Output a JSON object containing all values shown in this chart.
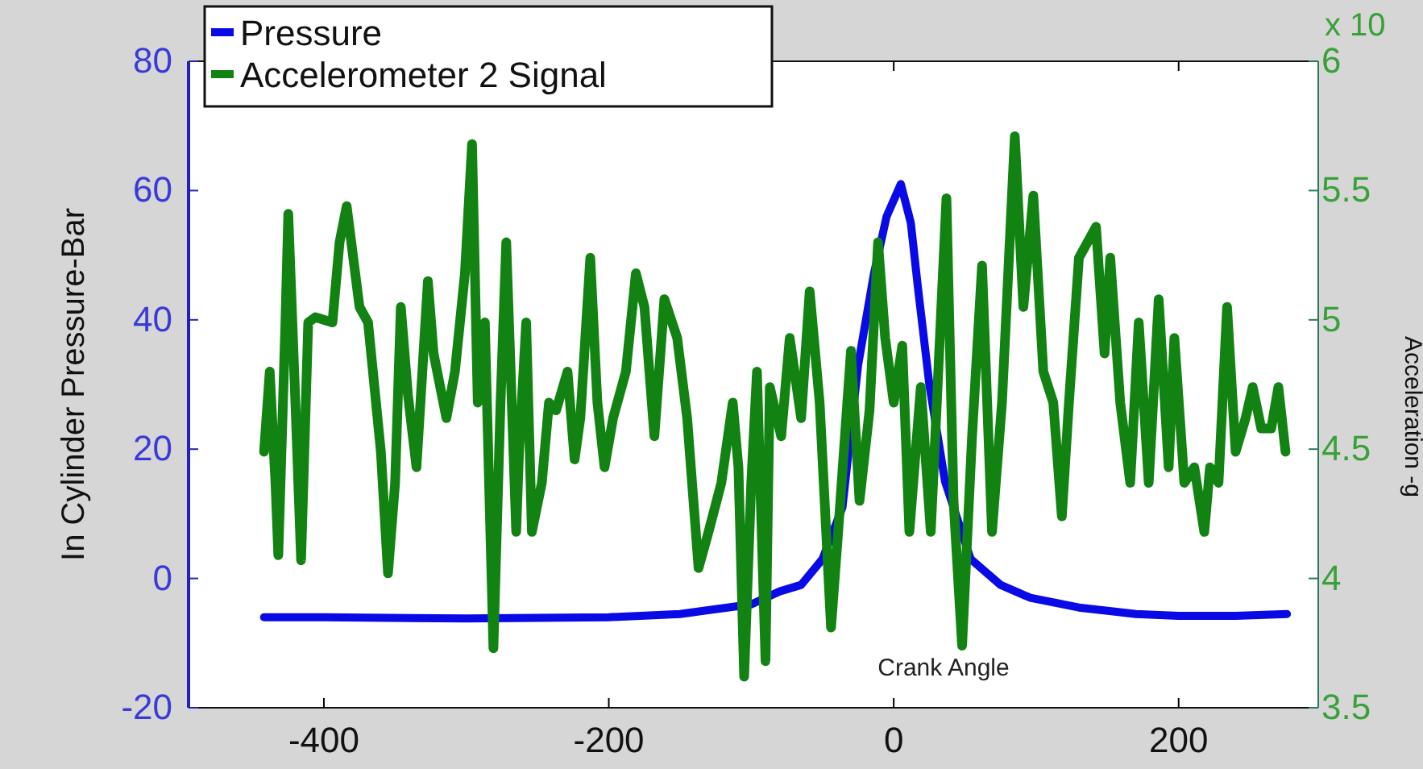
{
  "chart_data": {
    "type": "line",
    "xlabel": "Crank Angle",
    "ylabel": "In Cylinder Pressure-Bar",
    "y2label": "Acceleration -g",
    "annotations": [
      "x 10"
    ],
    "legend": "top left",
    "xlim": [
      -495,
      298
    ],
    "xticks": [
      -400,
      -200,
      0,
      200
    ],
    "ylim": [
      -20,
      80
    ],
    "yticks": [
      -20,
      0,
      20,
      40,
      60,
      80
    ],
    "y2lim": [
      3.5,
      6
    ],
    "y2ticks": [
      3.5,
      4,
      4.5,
      5,
      5.5,
      6
    ],
    "series": [
      {
        "name": "Pressure",
        "color": "#0a0ae6",
        "x": [
          -442,
          -400,
          -300,
          -200,
          -150,
          -100,
          -80,
          -65,
          -50,
          -36,
          -25,
          -14,
          -5,
          5,
          12,
          17,
          25,
          36,
          54,
          75,
          96,
          130,
          170,
          200,
          240,
          276
        ],
        "values": [
          -6,
          -6,
          -6.2,
          -6,
          -5.5,
          -4,
          -2,
          -1,
          3,
          11,
          33,
          47,
          56,
          61,
          55,
          45,
          30,
          15,
          3,
          -1,
          -3,
          -4.5,
          -5.5,
          -5.8,
          -5.8,
          -5.5
        ]
      },
      {
        "name": "Accelerometer 2 Signal",
        "color": "#128312",
        "axis": "y2",
        "x": [
          -442,
          -438,
          -434,
          -432,
          -427,
          -425,
          -420,
          -416,
          -411,
          -406,
          -394,
          -389,
          -384,
          -375,
          -369,
          -360,
          -355,
          -350,
          -346,
          -341,
          -335,
          -327,
          -323,
          -314,
          -308,
          -301,
          -296,
          -292,
          -287,
          -281,
          -276,
          -272,
          -265,
          -263,
          -258,
          -254,
          -247,
          -242,
          -237,
          -229,
          -224,
          -220,
          -213,
          -208,
          -203,
          -197,
          -188,
          -181,
          -175,
          -168,
          -161,
          -152,
          -145,
          -137,
          -130,
          -121,
          -113,
          -109,
          -105,
          -100,
          -96,
          -90,
          -87,
          -79,
          -73,
          -65,
          -59,
          -52,
          -44,
          -39,
          -30,
          -24,
          -17,
          -11,
          -6,
          0,
          6,
          11,
          19,
          26,
          37,
          42,
          48,
          55,
          62,
          69,
          76,
          85,
          91,
          98,
          105,
          112,
          118,
          123,
          130,
          136,
          142,
          148,
          152,
          159,
          166,
          172,
          179,
          186,
          193,
          197,
          204,
          211,
          218,
          222,
          228,
          234,
          240,
          247,
          252,
          258,
          265,
          270,
          275
        ],
        "values": [
          4.49,
          4.8,
          4.37,
          4.09,
          4.99,
          5.41,
          4.68,
          4.07,
          4.99,
          5.01,
          4.99,
          5.3,
          5.44,
          5.05,
          4.99,
          4.49,
          4.02,
          4.37,
          5.05,
          4.71,
          4.43,
          5.15,
          4.87,
          4.62,
          4.8,
          5.18,
          5.68,
          4.68,
          4.99,
          3.73,
          4.68,
          5.3,
          4.18,
          4.49,
          4.99,
          4.18,
          4.37,
          4.68,
          4.65,
          4.8,
          4.46,
          4.62,
          5.24,
          4.68,
          4.43,
          4.62,
          4.8,
          5.18,
          5.05,
          4.55,
          5.08,
          4.93,
          4.62,
          4.04,
          4.18,
          4.37,
          4.68,
          4.43,
          3.62,
          4.37,
          4.8,
          3.68,
          4.74,
          4.55,
          4.93,
          4.62,
          5.11,
          4.68,
          3.81,
          4.18,
          4.88,
          4.3,
          4.65,
          5.3,
          4.93,
          4.68,
          4.9,
          4.18,
          4.74,
          4.18,
          5.47,
          4.3,
          3.74,
          4.55,
          5.21,
          4.18,
          4.68,
          5.71,
          5.05,
          5.48,
          4.8,
          4.68,
          4.24,
          4.68,
          5.24,
          5.3,
          5.36,
          4.87,
          5.24,
          4.68,
          4.37,
          4.99,
          4.37,
          5.08,
          4.43,
          4.93,
          4.37,
          4.43,
          4.18,
          4.43,
          4.37,
          5.05,
          4.49,
          4.62,
          4.74,
          4.58,
          4.58,
          4.74,
          4.49
        ]
      }
    ]
  }
}
